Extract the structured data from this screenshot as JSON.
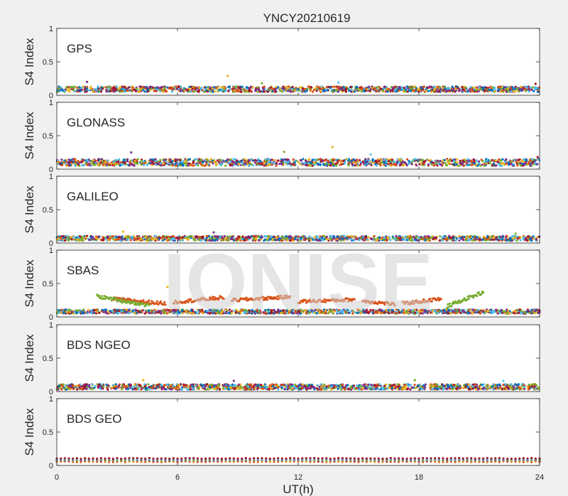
{
  "figure": {
    "title": "YNCY20210619",
    "xlabel": "UT(h)",
    "watermark": "IONISE"
  },
  "chart_data": {
    "type": "scatter",
    "title": "YNCY20210619",
    "xlabel": "UT(h)",
    "ylabel": "S4 Index",
    "xlim": [
      0,
      24
    ],
    "ylim": [
      0,
      1
    ],
    "xticks": [
      0,
      6,
      12,
      18,
      24
    ],
    "yticks": [
      0,
      0.5,
      1
    ],
    "ytick_labels": [
      "0",
      "0.5",
      "1"
    ],
    "grid": false,
    "colors": [
      "#0072BD",
      "#D95319",
      "#EDB120",
      "#7E2F8E",
      "#77AC30",
      "#4DBEEE",
      "#A2142F"
    ],
    "panels": [
      {
        "label": "GPS",
        "baseline": 0.09,
        "spread": 0.04,
        "points": [
          [
            8.5,
            0.29
          ],
          [
            1.5,
            0.2
          ],
          [
            10.2,
            0.18
          ],
          [
            14.0,
            0.19
          ],
          [
            23.8,
            0.17
          ]
        ]
      },
      {
        "label": "GLONASS",
        "baseline": 0.1,
        "spread": 0.05,
        "points": [
          [
            13.7,
            0.33
          ],
          [
            3.7,
            0.25
          ],
          [
            11.3,
            0.26
          ],
          [
            15.6,
            0.22
          ],
          [
            23.9,
            0.18
          ]
        ]
      },
      {
        "label": "GALILEO",
        "baseline": 0.07,
        "spread": 0.035,
        "points": [
          [
            3.3,
            0.17
          ],
          [
            7.8,
            0.16
          ],
          [
            22.8,
            0.14
          ]
        ]
      },
      {
        "label": "SBAS",
        "baseline": 0.08,
        "spread": 0.03,
        "orange_arcs": [
          {
            "x": [
              2.8,
              5.4
            ],
            "y": [
              0.27,
              0.2
            ]
          },
          {
            "x": [
              5.8,
              8.3
            ],
            "y": [
              0.22,
              0.29
            ]
          },
          {
            "x": [
              8.7,
              11.6
            ],
            "y": [
              0.25,
              0.3
            ]
          },
          {
            "x": [
              12.0,
              14.8
            ],
            "y": [
              0.23,
              0.26
            ]
          },
          {
            "x": [
              15.2,
              16.8
            ],
            "y": [
              0.24,
              0.19
            ]
          },
          {
            "x": [
              17.2,
              19.1
            ],
            "y": [
              0.2,
              0.27
            ]
          }
        ],
        "green_arcs": [
          {
            "x": [
              2.0,
              4.6
            ],
            "y": [
              0.31,
              0.17
            ]
          },
          {
            "x": [
              19.4,
              21.2
            ],
            "y": [
              0.16,
              0.37
            ]
          }
        ],
        "points": [
          [
            5.5,
            0.45
          ]
        ]
      },
      {
        "label": "BDS NGEO",
        "baseline": 0.07,
        "spread": 0.04,
        "points": [
          [
            4.3,
            0.17
          ],
          [
            8.8,
            0.16
          ],
          [
            17.8,
            0.17
          ],
          [
            22.2,
            0.16
          ]
        ]
      },
      {
        "label": "BDS GEO",
        "baseline": 0.07,
        "spread": 0.01,
        "geo_lines": [
          0.055,
          0.065,
          0.075,
          0.085,
          0.095,
          0.105
        ]
      }
    ]
  }
}
